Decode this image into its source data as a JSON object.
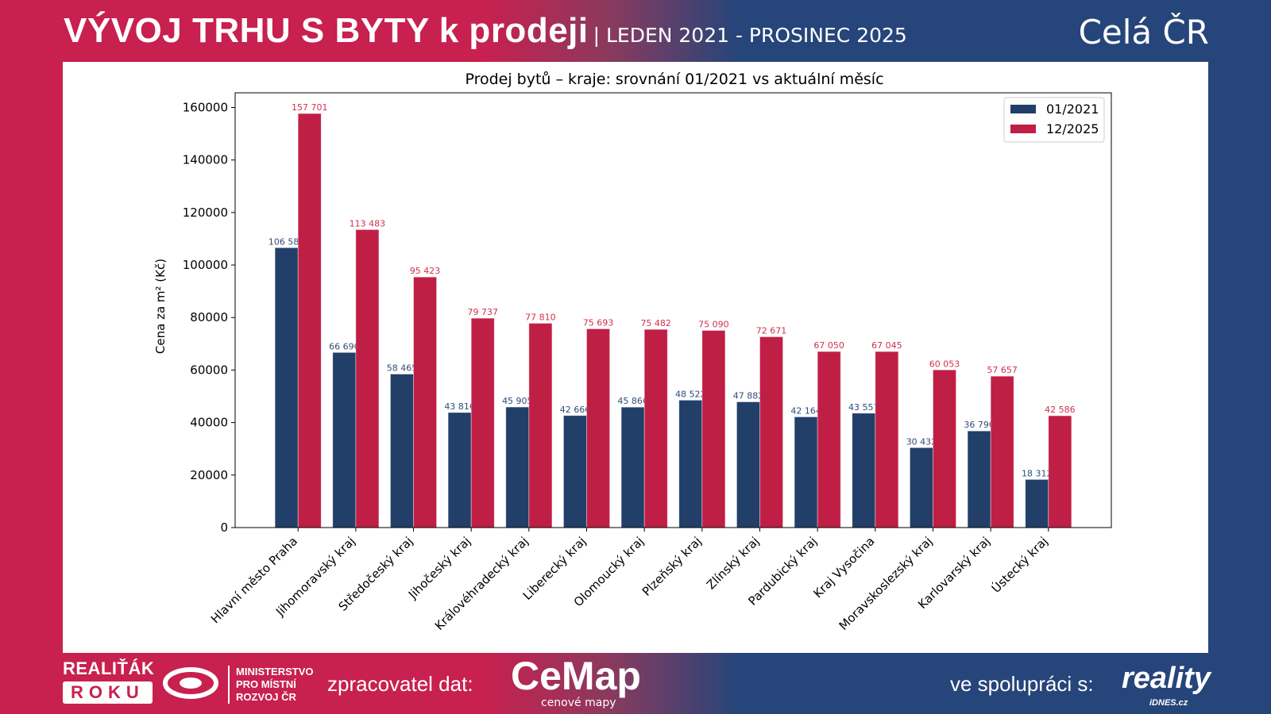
{
  "header": {
    "title": "VÝVOJ TRHU S BYTY k prodeji",
    "period": "| LEDEN 2021 - PROSINEC 2025",
    "region": "Celá ČR"
  },
  "footer": {
    "realitak_line1": "REALIŤÁK",
    "realitak_line2": "ROKU",
    "ministry": [
      "MINISTERSTVO",
      "PRO MÍSTNÍ",
      "ROZVOJ ČR"
    ],
    "processor_label": "zpracovatel dat:",
    "cemap_logo": "CeMap",
    "cemap_sub": "cenové mapy",
    "cooperation_label": "ve spolupráci s:",
    "reality_logo": "reality",
    "reality_sub": "iDNES.cz"
  },
  "colors": {
    "series_2021": "#213f68",
    "series_2025": "#c01f45",
    "header_red": "#c8204f",
    "header_blue": "#26457a"
  },
  "chart_data": {
    "type": "bar",
    "title": "Prodej bytů – kraje: srovnání 01/2021 vs aktuální měsíc",
    "xlabel": "",
    "ylabel": "Cena za m² (Kč)",
    "ylim": [
      0,
      165586
    ],
    "yticks": [
      0,
      20000,
      40000,
      60000,
      80000,
      100000,
      120000,
      140000,
      160000
    ],
    "grid": false,
    "legend": "top-right",
    "categories": [
      "Hlavní město Praha",
      "Jihomoravský kraj",
      "Středočeský kraj",
      "Jihočeský kraj",
      "Královéhradecký kraj",
      "Liberecký kraj",
      "Olomoucký kraj",
      "Plzeňský kraj",
      "Zlínský kraj",
      "Pardubický kraj",
      "Kraj Vysočina",
      "Moravskoslezský kraj",
      "Karlovarský kraj",
      "Ústecký kraj"
    ],
    "series": [
      {
        "name": "01/2021",
        "color": "#213f68",
        "values": [
          106585,
          66690,
          58465,
          43816,
          45905,
          42666,
          45866,
          48522,
          47882,
          42164,
          43557,
          30432,
          36790,
          18312
        ],
        "labels": [
          "106 585",
          "66 690",
          "58 465",
          "43 816",
          "45 905",
          "42 666",
          "45 866",
          "48 522",
          "47 882",
          "42 164",
          "43 557",
          "30 432",
          "36 790",
          "18 312"
        ]
      },
      {
        "name": "12/2025",
        "color": "#c01f45",
        "values": [
          157701,
          113483,
          95423,
          79737,
          77810,
          75693,
          75482,
          75090,
          72671,
          67050,
          67045,
          60053,
          57657,
          42586
        ],
        "labels": [
          "157 701",
          "113 483",
          "95 423",
          "79 737",
          "77 810",
          "75 693",
          "75 482",
          "75 090",
          "72 671",
          "67 050",
          "67 045",
          "60 053",
          "57 657",
          "42 586"
        ]
      }
    ]
  }
}
